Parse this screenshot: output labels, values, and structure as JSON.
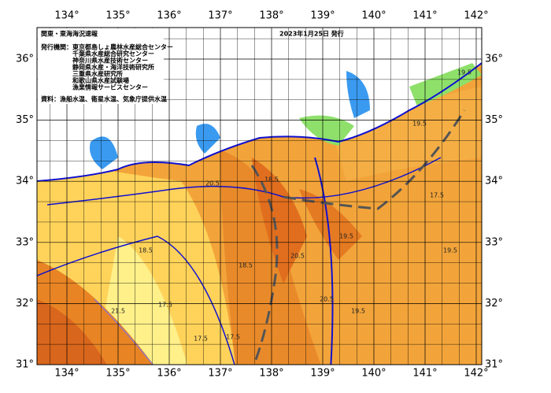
{
  "header": {
    "title": "関東・東海海況速報",
    "date": "2023年1月25日 発行"
  },
  "issuers": {
    "heading": "発行機関：",
    "organizations": [
      "東京都島しょ農林水産総合センター",
      "千葉県水産総合研究センター",
      "神奈川県水産技術センター",
      "静岡県水産・海洋技術研究所",
      "三重県水産研究所",
      "和歌山県水産試験場",
      "漁業情報サービスセンター"
    ]
  },
  "source": "資料：漁船水温、衛星水温、気象庁提供水温",
  "map": {
    "xticks": [
      {
        "value": 134,
        "label": "134°"
      },
      {
        "value": 135,
        "label": "135°"
      },
      {
        "value": 136,
        "label": "136°"
      },
      {
        "value": 137,
        "label": "137°"
      },
      {
        "value": 138,
        "label": "138°"
      },
      {
        "value": 139,
        "label": "139°"
      },
      {
        "value": 140,
        "label": "140°"
      },
      {
        "value": 141,
        "label": "141°"
      },
      {
        "value": 142,
        "label": "142°"
      }
    ],
    "yticks": [
      {
        "value": 31,
        "label": "31°"
      },
      {
        "value": 32,
        "label": "32°"
      },
      {
        "value": 33,
        "label": "33°"
      },
      {
        "value": 34,
        "label": "34°"
      },
      {
        "value": 35,
        "label": "35°"
      },
      {
        "value": 36,
        "label": "36°"
      }
    ],
    "isotherm_labels": [
      "18.5",
      "17.5",
      "21.5",
      "19.5",
      "20.5",
      "18.5",
      "17.5",
      "19.5",
      "20.5",
      "19.5",
      "17.5",
      "19.5",
      "18.5",
      "19.5",
      "20.5",
      "17.5"
    ]
  }
}
